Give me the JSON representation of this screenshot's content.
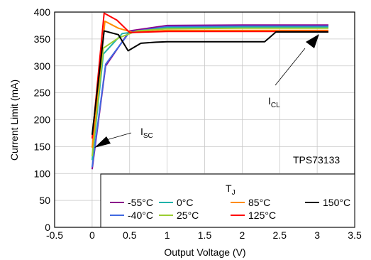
{
  "chart_data": {
    "type": "line",
    "xlabel": "Output Voltage (V)",
    "ylabel": "Current Limit (mA)",
    "xlim": [
      -0.5,
      3.5
    ],
    "ylim": [
      0,
      400
    ],
    "x_ticks": [
      "-0.5",
      "0",
      "0.5",
      "1",
      "1.5",
      "2",
      "2.5",
      "3",
      "3.5"
    ],
    "y_ticks": [
      "0",
      "50",
      "100",
      "150",
      "200",
      "250",
      "300",
      "350",
      "400"
    ],
    "grid": true,
    "legend_title": "T",
    "legend_title_sub": "J",
    "legend_placement": "bottom-right",
    "annotations": {
      "isc_main": "I",
      "isc_sub": "SC",
      "icl_main": "I",
      "icl_sub": "CL",
      "part": "TPS73133"
    },
    "series": [
      {
        "name": "-55°C",
        "color": "#8b008b",
        "x": [
          0.0,
          0.18,
          0.5,
          1.0,
          2.0,
          3.15
        ],
        "y": [
          108,
          300,
          365,
          375,
          376,
          376
        ]
      },
      {
        "name": "-40°C",
        "color": "#4169e1",
        "x": [
          0.0,
          0.18,
          0.5,
          1.0,
          2.0,
          3.15
        ],
        "y": [
          112,
          303,
          363,
          373,
          374,
          374
        ]
      },
      {
        "name": "0°C",
        "color": "#20b2aa",
        "x": [
          0.0,
          0.15,
          0.4,
          1.0,
          2.0,
          3.15
        ],
        "y": [
          125,
          322,
          360,
          371,
          372,
          372
        ]
      },
      {
        "name": "25°C",
        "color": "#9acd32",
        "x": [
          0.0,
          0.15,
          0.35,
          0.6,
          1.0,
          2.0,
          3.15
        ],
        "y": [
          132,
          333,
          352,
          365,
          369,
          370,
          370
        ]
      },
      {
        "name": "85°C",
        "color": "#ff8c00",
        "x": [
          0.0,
          0.17,
          0.35,
          0.55,
          1.0,
          2.0,
          3.15
        ],
        "y": [
          148,
          383,
          370,
          362,
          366,
          366,
          366
        ]
      },
      {
        "name": "125°C",
        "color": "#ff0000",
        "x": [
          0.0,
          0.16,
          0.33,
          0.5,
          1.0,
          2.0,
          3.15
        ],
        "y": [
          165,
          398,
          385,
          362,
          364,
          364,
          364
        ]
      },
      {
        "name": "150°C",
        "color": "#000000",
        "x": [
          0.0,
          0.16,
          0.35,
          0.48,
          0.65,
          0.85,
          1.0,
          2.3,
          2.45,
          3.15
        ],
        "y": [
          172,
          365,
          358,
          328,
          342,
          344,
          345,
          345,
          363,
          363
        ]
      }
    ]
  }
}
